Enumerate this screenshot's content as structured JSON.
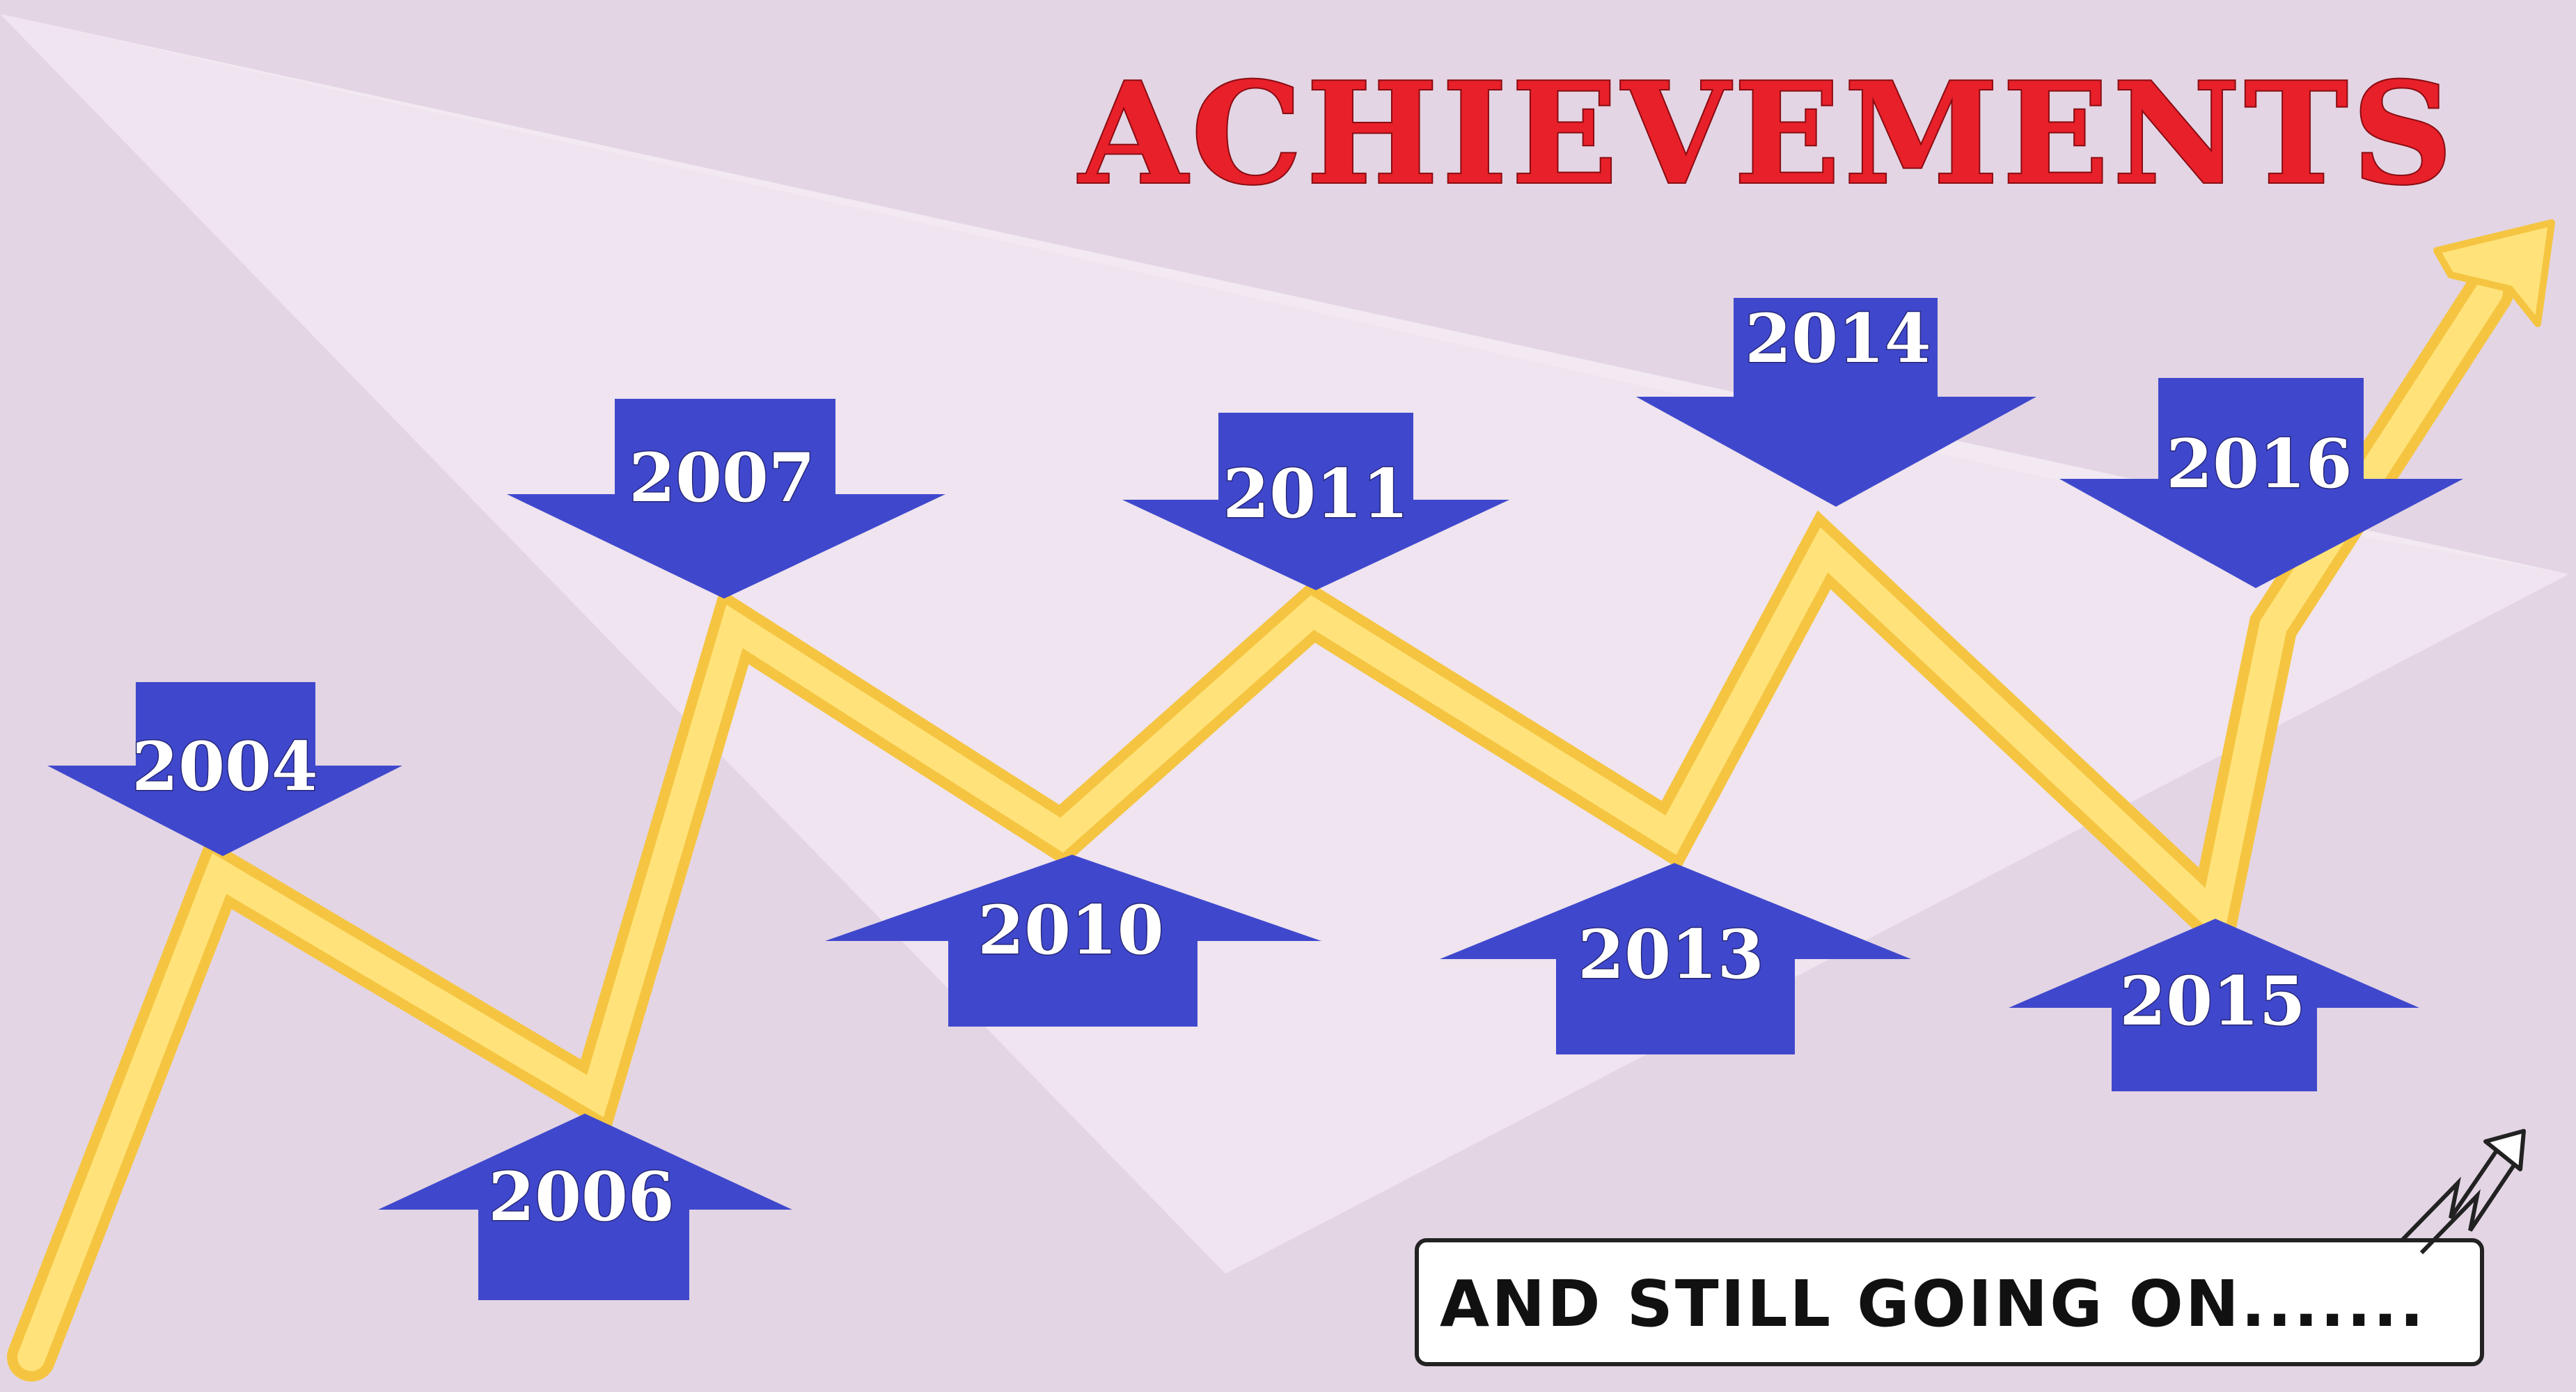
{
  "title": "ACHIEVEMENTS",
  "tagline": "AND STILL GOING ON.......",
  "colors": {
    "background": "#e3d5e4",
    "spotlight": "#efe4ef",
    "arrow_fill": "#3f48cc",
    "path_fill": "#ffe066",
    "path_stroke": "#f5c542",
    "title": "#e8202a"
  },
  "milestones": [
    {
      "year": "2004",
      "direction": "down"
    },
    {
      "year": "2006",
      "direction": "up"
    },
    {
      "year": "2007",
      "direction": "down"
    },
    {
      "year": "2010",
      "direction": "up"
    },
    {
      "year": "2011",
      "direction": "down"
    },
    {
      "year": "2013",
      "direction": "up"
    },
    {
      "year": "2014",
      "direction": "down"
    },
    {
      "year": "2015",
      "direction": "up"
    },
    {
      "year": "2016",
      "direction": "down"
    }
  ],
  "icons": {
    "trend_arrow": "trend-up-arrow-icon",
    "small_arrow": "small-zigzag-arrow-icon"
  }
}
